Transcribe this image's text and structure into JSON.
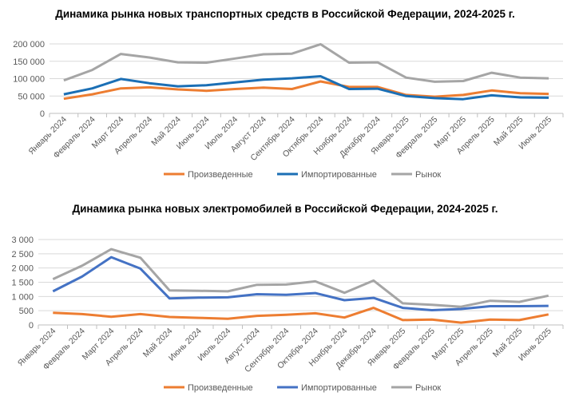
{
  "chart_data": [
    {
      "type": "line",
      "title": "Динамика рынка новых транспортных средств в Российской Федерации, 2024-2025 г.",
      "categories": [
        "Январь 2024",
        "Февраль 2024",
        "Март 2024",
        "Апрель 2024",
        "Май 2024",
        "Июнь 2024",
        "Июль 2024",
        "Август 2024",
        "Сентябрь 2024",
        "Октябрь 2024",
        "Ноябрь 2024",
        "Декабрь 2024",
        "Январь 2025",
        "Февраль 2025",
        "Март 2025",
        "Апрель 2025",
        "Май 2025",
        "Июнь 2025"
      ],
      "ylim": [
        0,
        200000
      ],
      "yticks": [
        0,
        50000,
        100000,
        150000,
        200000
      ],
      "ytick_labels": [
        "0",
        "50 000",
        "100 000",
        "150 000",
        "200 000"
      ],
      "grid": true,
      "legend": "bottom",
      "series": [
        {
          "name": "Произведенные",
          "color": "#ED7D31",
          "values": [
            42000,
            55000,
            72000,
            75000,
            69000,
            65000,
            70000,
            74000,
            70000,
            92000,
            76000,
            76000,
            53000,
            48000,
            53000,
            66000,
            58000,
            56000
          ]
        },
        {
          "name": "Импортированные",
          "color": "#1B6FB5",
          "values": [
            55000,
            72000,
            99000,
            87000,
            78000,
            81000,
            89000,
            97000,
            101000,
            107000,
            70000,
            71000,
            50000,
            44000,
            41000,
            52000,
            46000,
            45000
          ]
        },
        {
          "name": "Рынок",
          "color": "#A5A5A5",
          "values": [
            95000,
            125000,
            171000,
            161000,
            147000,
            146000,
            158000,
            170000,
            172000,
            199000,
            146000,
            147000,
            103000,
            91000,
            93000,
            117000,
            103000,
            101000
          ]
        }
      ]
    },
    {
      "type": "line",
      "title": "Динамика рынка новых электромобилей в Российской Федерации, 2024-2025 г.",
      "categories": [
        "Январь 2024",
        "Февраль 2024",
        "Март 2024",
        "Апрель 2024",
        "Май 2024",
        "Июнь 2024",
        "Июль 2024",
        "Август 2024",
        "Сентябрь 2024",
        "Октябрь 2024",
        "Ноябрь 2024",
        "Декабрь 2024",
        "Январь 2025",
        "Февраль 2025",
        "Март 2025",
        "Апрель 2025",
        "Май 2025",
        "Июнь 2025"
      ],
      "ylim": [
        0,
        3000
      ],
      "yticks": [
        0,
        500,
        1000,
        1500,
        2000,
        2500,
        3000
      ],
      "ytick_labels": [
        "0",
        "500",
        "1 000",
        "1 500",
        "2 000",
        "2 500",
        "3 000"
      ],
      "grid": true,
      "legend": "bottom",
      "series": [
        {
          "name": "Произведенные",
          "color": "#ED7D31",
          "values": [
            430,
            380,
            290,
            380,
            280,
            250,
            220,
            320,
            360,
            410,
            260,
            600,
            170,
            190,
            80,
            190,
            170,
            370
          ]
        },
        {
          "name": "Импортированные",
          "color": "#4472C4",
          "values": [
            1180,
            1700,
            2380,
            1980,
            930,
            960,
            970,
            1080,
            1060,
            1120,
            870,
            950,
            600,
            520,
            560,
            660,
            660,
            670
          ]
        },
        {
          "name": "Рынок",
          "color": "#A5A5A5",
          "values": [
            1610,
            2080,
            2660,
            2360,
            1210,
            1200,
            1180,
            1410,
            1420,
            1530,
            1130,
            1560,
            760,
            710,
            640,
            850,
            810,
            1030
          ]
        }
      ]
    }
  ]
}
